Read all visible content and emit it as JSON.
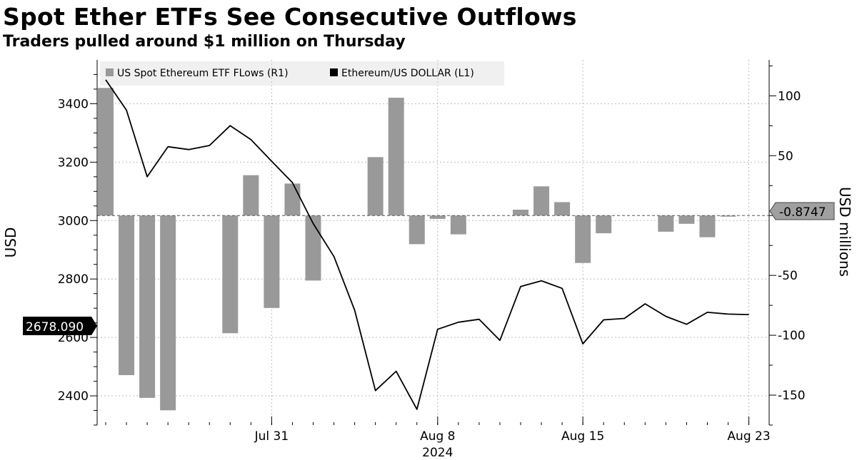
{
  "header": {
    "title": "Spot Ether ETFs See Consecutive Outflows",
    "subtitle": "Traders pulled around $1 million on Thursday"
  },
  "chart_data": {
    "type": "bar+line",
    "x_labels": [
      "Jul 31",
      "Aug 8",
      "Aug 15",
      "Aug 23"
    ],
    "x_sublabel": "2024",
    "legend": [
      {
        "name": "US Spot Ethereum ETF FLows (R1)",
        "color": "#999999",
        "type": "bar"
      },
      {
        "name": "Ethereum/US DOLLAR (L1)",
        "color": "#000000",
        "type": "line"
      }
    ],
    "left_axis": {
      "label": "USD",
      "ticks": [
        2400,
        2600,
        2800,
        3000,
        3200,
        3400
      ],
      "ylim": [
        2300,
        3550
      ]
    },
    "right_axis": {
      "label": "USD millions",
      "ticks": [
        100,
        50,
        0,
        -50,
        -100,
        -150
      ],
      "tick_labels": [
        "100",
        "50",
        "",
        "-50",
        "-100",
        "-150"
      ],
      "ylim": [
        -175,
        130
      ]
    },
    "last_value_left": "2678.090",
    "last_value_right": "-0.8747",
    "bar_series": {
      "name": "US Spot Ethereum ETF FLows (R1)",
      "color": "#999999",
      "values": [
        106.6,
        -133.3,
        -152.3,
        -162.7,
        null,
        null,
        -98.3,
        33.7,
        -77.2,
        26.7,
        -54.3,
        null,
        null,
        48.8,
        98.4,
        -23.9,
        -2.8,
        -15.7,
        null,
        null,
        4.9,
        24.4,
        11.2,
        -39.6,
        -14.8,
        null,
        null,
        -13.5,
        -6.9,
        -18.1,
        -0.8747
      ],
      "color_hex": "#999999"
    },
    "line_series": {
      "name": "Ethereum/US DOLLAR (L1)",
      "color": "#000000",
      "values": [
        3482,
        3378,
        3150,
        3253,
        3243,
        3257,
        3325,
        3277,
        3203,
        3130,
        2990,
        2877,
        2693,
        2418,
        2484,
        2354,
        2628,
        2652,
        2662,
        2590,
        2774,
        2794,
        2768,
        2578,
        2660,
        2665,
        2715,
        2672,
        2645,
        2686,
        2680,
        2678.09
      ]
    }
  }
}
